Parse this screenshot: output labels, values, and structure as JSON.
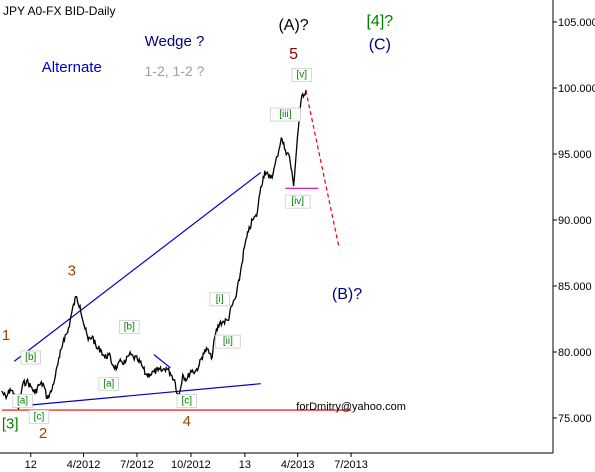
{
  "chart_data": {
    "type": "line",
    "title": "JPY A0-FX BID-Daily",
    "ylim": [
      74,
      106
    ],
    "y_ticks": [
      75,
      80,
      85,
      90,
      95,
      100,
      105
    ],
    "y_tick_labels": [
      "75.000",
      "80.000",
      "85.000",
      "90.000",
      "95.000",
      "100.000",
      "105.000"
    ],
    "x_tick_labels": [
      "12",
      "4/2012",
      "7/2012",
      "10/2012",
      "13",
      "4/2013",
      "7/2013"
    ],
    "x_tick_dates": [
      "2012-01-02",
      "2012-04-01",
      "2012-07-01",
      "2012-10-01",
      "2013-01-01",
      "2013-04-01",
      "2013-07-01"
    ],
    "series": [
      {
        "x": [
          "2011-11-14",
          "2011-11-21",
          "2011-11-28",
          "2011-12-05",
          "2011-12-12",
          "2011-12-19",
          "2011-12-26",
          "2012-01-02",
          "2012-01-09",
          "2012-01-16",
          "2012-01-23",
          "2012-01-30",
          "2012-02-06",
          "2012-02-13",
          "2012-02-20",
          "2012-02-27",
          "2012-03-05",
          "2012-03-12",
          "2012-03-19",
          "2012-03-26",
          "2012-04-02",
          "2012-04-09",
          "2012-04-16",
          "2012-04-23",
          "2012-04-30",
          "2012-05-07",
          "2012-05-14",
          "2012-05-21",
          "2012-05-28",
          "2012-06-04",
          "2012-06-11",
          "2012-06-18",
          "2012-06-25",
          "2012-07-02",
          "2012-07-09",
          "2012-07-16",
          "2012-07-23",
          "2012-07-30",
          "2012-08-06",
          "2012-08-13",
          "2012-08-20",
          "2012-08-27",
          "2012-09-03",
          "2012-09-10",
          "2012-09-17",
          "2012-09-24",
          "2012-10-01",
          "2012-10-08",
          "2012-10-15",
          "2012-10-22",
          "2012-10-29",
          "2012-11-05",
          "2012-11-12",
          "2012-11-19",
          "2012-11-26",
          "2012-12-03",
          "2012-12-10",
          "2012-12-17",
          "2012-12-24",
          "2012-12-31",
          "2013-01-07",
          "2013-01-14",
          "2013-01-21",
          "2013-01-28",
          "2013-02-04",
          "2013-02-11",
          "2013-02-18",
          "2013-02-25",
          "2013-03-04",
          "2013-03-11",
          "2013-03-18",
          "2013-03-25",
          "2013-04-01",
          "2013-04-08",
          "2013-04-15"
        ],
        "values": [
          77.0,
          76.5,
          77.2,
          76.8,
          75.7,
          77.5,
          77.8,
          77.4,
          76.9,
          77.5,
          77.6,
          76.5,
          77.0,
          78.2,
          79.6,
          81.0,
          81.5,
          83.0,
          84.2,
          83.5,
          82.0,
          80.9,
          81.2,
          80.3,
          80.2,
          79.6,
          79.8,
          79.0,
          78.8,
          79.3,
          79.2,
          79.8,
          79.6,
          79.4,
          79.0,
          78.3,
          78.3,
          78.5,
          78.6,
          78.6,
          78.8,
          78.4,
          77.9,
          76.5,
          78.3,
          77.9,
          78.6,
          78.5,
          79.0,
          79.9,
          80.2,
          79.5,
          81.4,
          82.2,
          82.3,
          82.4,
          83.5,
          84.2,
          85.9,
          87.9,
          89.1,
          90.0,
          90.3,
          92.5,
          93.7,
          93.2,
          93.5,
          94.8,
          96.2,
          95.3,
          94.8,
          92.6,
          96.5,
          99.4,
          99.8
        ]
      }
    ],
    "trend_lines": [
      {
        "color": "#0000cc",
        "from": [
          "2011-12-05",
          79.3
        ],
        "to": [
          "2013-01-28",
          93.6
        ]
      },
      {
        "color": "#0000cc",
        "from": [
          "2011-12-12",
          75.9
        ],
        "to": [
          "2013-01-28",
          77.6
        ]
      },
      {
        "color": "#0000cc",
        "from": [
          "2012-07-30",
          79.8
        ],
        "to": [
          "2012-08-27",
          78.8
        ]
      },
      {
        "color": "#ee0000",
        "from": [
          "2011-11-14",
          75.6
        ],
        "to": [
          "2013-07-01",
          75.6
        ]
      },
      {
        "color": "#cc00cc",
        "from": [
          "2013-03-11",
          92.4
        ],
        "to": [
          "2013-05-06",
          92.4
        ]
      }
    ],
    "projection": {
      "color": "#ee0000",
      "dashed": true,
      "from": [
        "2013-04-15",
        99.8
      ],
      "to": [
        "2013-06-10",
        88.0
      ]
    },
    "annotations": [
      {
        "text": "Wedge ?",
        "x": "2012-09-03",
        "y": 103.2,
        "color": "#000080",
        "size": 15
      },
      {
        "text": "1-2, 1-2 ?",
        "x": "2012-09-03",
        "y": 100.9,
        "color": "#a0a0a0",
        "size": 14
      },
      {
        "text": "Alternate",
        "x": "2012-03-12",
        "y": 101.2,
        "color": "#0000cc",
        "size": 15
      },
      {
        "text": "(A)?",
        "x": "2013-03-25",
        "y": 104.4,
        "color": "#000000",
        "size": 16
      },
      {
        "text": "5",
        "x": "2013-03-25",
        "y": 102.2,
        "color": "#990000",
        "size": 16
      },
      {
        "text": "[4]?",
        "x": "2013-08-19",
        "y": 104.7,
        "color": "#008000",
        "size": 16
      },
      {
        "text": "(C)",
        "x": "2013-08-19",
        "y": 102.9,
        "color": "#000080",
        "size": 16
      },
      {
        "text": "(B)?",
        "x": "2013-06-24",
        "y": 84.0,
        "color": "#000080",
        "size": 16
      },
      {
        "text": "forDmitry@yahoo.com",
        "x": "2013-07-01",
        "y": 75.6,
        "color": "#000000",
        "size": 11,
        "serif": true
      },
      {
        "text": "1",
        "x": "2011-11-21",
        "y": 80.9,
        "color": "#994400",
        "size": 15
      },
      {
        "text": "[3]",
        "x": "2011-11-28",
        "y": 74.2,
        "color": "#008000",
        "size": 15
      },
      {
        "text": "2",
        "x": "2012-01-23",
        "y": 73.5,
        "color": "#994400",
        "size": 15
      },
      {
        "text": "3",
        "x": "2012-03-12",
        "y": 85.8,
        "color": "#994400",
        "size": 15
      },
      {
        "text": "4",
        "x": "2012-09-24",
        "y": 74.4,
        "color": "#994400",
        "size": 15
      },
      {
        "text": "[a]",
        "x": "2011-12-19",
        "y": 76.1,
        "color": "#008000",
        "size": 10,
        "box": true
      },
      {
        "text": "[b]",
        "x": "2012-01-02",
        "y": 79.4,
        "color": "#008000",
        "size": 10,
        "box": true
      },
      {
        "text": "[c]",
        "x": "2012-01-16",
        "y": 74.9,
        "color": "#008000",
        "size": 10,
        "box": true
      },
      {
        "text": "[a]",
        "x": "2012-05-14",
        "y": 77.4,
        "color": "#008000",
        "size": 10,
        "box": true
      },
      {
        "text": "[b]",
        "x": "2012-06-18",
        "y": 81.7,
        "color": "#008000",
        "size": 10,
        "box": true
      },
      {
        "text": "[c]",
        "x": "2012-09-24",
        "y": 76.1,
        "color": "#008000",
        "size": 10,
        "box": true
      },
      {
        "text": "[i]",
        "x": "2012-11-19",
        "y": 83.8,
        "color": "#008000",
        "size": 10,
        "box": true
      },
      {
        "text": "[ii]",
        "x": "2012-12-03",
        "y": 80.6,
        "color": "#008000",
        "size": 10,
        "box": true
      },
      {
        "text": "[iii]",
        "x": "2013-03-11",
        "y": 97.8,
        "color": "#008000",
        "size": 10,
        "box": true
      },
      {
        "text": "[iv]",
        "x": "2013-04-01",
        "y": 91.2,
        "color": "#008000",
        "size": 10,
        "box": true
      },
      {
        "text": "[v]",
        "x": "2013-04-08",
        "y": 100.8,
        "color": "#008000",
        "size": 10,
        "box": true
      }
    ],
    "colors": {
      "price": "#000000",
      "axis": "#000000",
      "background": "#ffffff"
    }
  }
}
